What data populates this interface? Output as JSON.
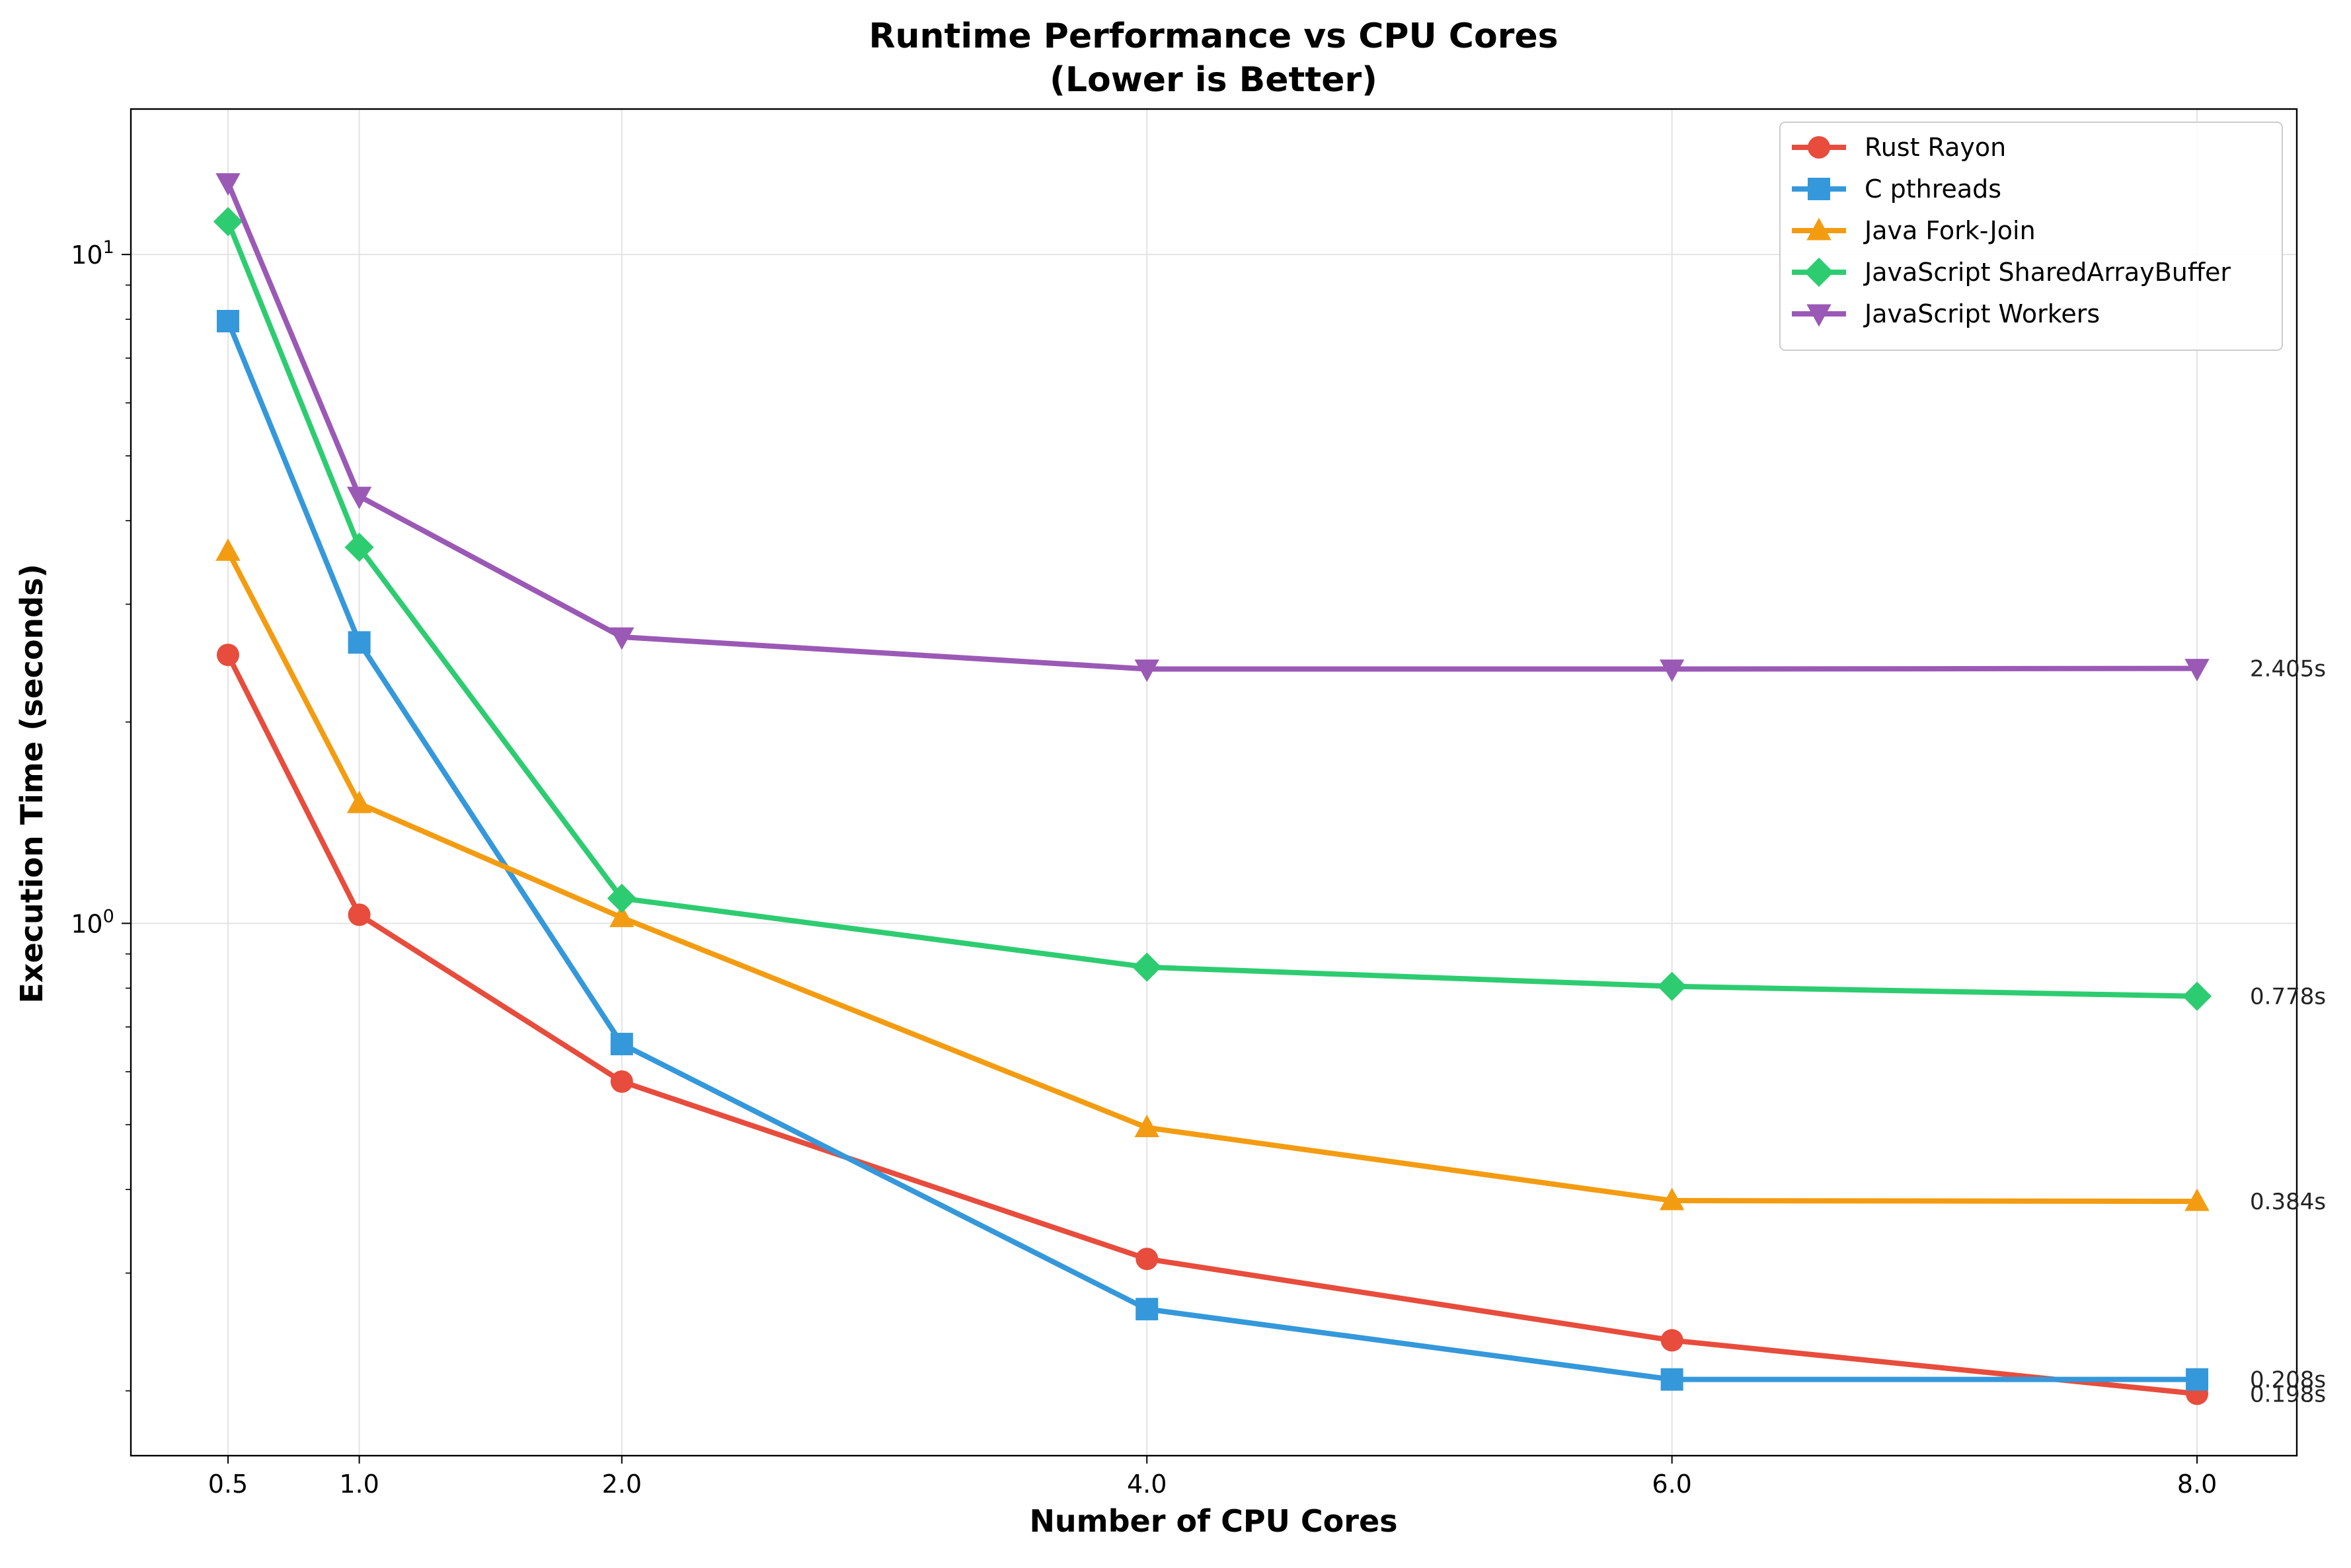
{
  "chart_data": {
    "type": "line",
    "title": "Runtime Performance vs CPU Cores",
    "subtitle": "(Lower is Better)",
    "xlabel": "Number of CPU Cores",
    "ylabel": "Execution Time (seconds)",
    "x": [
      0.5,
      1.0,
      2.0,
      4.0,
      6.0,
      8.0
    ],
    "x_tick_labels": [
      "0.5",
      "1.0",
      "2.0",
      "4.0",
      "6.0",
      "8.0"
    ],
    "xlim": [
      0.13,
      8.38
    ],
    "ylim": [
      0.16,
      16.5
    ],
    "y_scale": "log",
    "y_major_ticks": [
      {
        "value": 1,
        "base": "10",
        "exp": "0"
      },
      {
        "value": 10,
        "base": "10",
        "exp": "1"
      }
    ],
    "y_minor_ticks": [
      0.2,
      0.3,
      0.4,
      0.5,
      0.6,
      0.7,
      0.8,
      0.9,
      2,
      3,
      4,
      5,
      6,
      7,
      8,
      9
    ],
    "grid": true,
    "legend_position": "top-right",
    "series": [
      {
        "name": "Rust Rayon",
        "color": "#e74c3c",
        "marker": "circle",
        "values": [
          2.52,
          1.03,
          0.58,
          0.315,
          0.238,
          0.198
        ]
      },
      {
        "name": "C pthreads",
        "color": "#3498db",
        "marker": "square",
        "values": [
          7.95,
          2.63,
          0.66,
          0.265,
          0.208,
          0.208
        ]
      },
      {
        "name": "Java Fork-Join",
        "color": "#f39c12",
        "marker": "triangle-up",
        "values": [
          3.6,
          1.51,
          1.02,
          0.495,
          0.385,
          0.384
        ]
      },
      {
        "name": "JavaScript SharedArrayBuffer",
        "color": "#2ecc71",
        "marker": "diamond",
        "values": [
          11.2,
          3.65,
          1.09,
          0.86,
          0.805,
          0.778
        ]
      },
      {
        "name": "JavaScript Workers",
        "color": "#9b59b6",
        "marker": "triangle-down",
        "values": [
          12.8,
          4.35,
          2.68,
          2.4,
          2.4,
          2.405
        ]
      }
    ],
    "end_labels": [
      {
        "series": "JavaScript Workers",
        "text": "2.405s"
      },
      {
        "series": "JavaScript SharedArrayBuffer",
        "text": "0.778s"
      },
      {
        "series": "Java Fork-Join",
        "text": "0.384s"
      },
      {
        "series": "C pthreads",
        "text": "0.208s"
      },
      {
        "series": "Rust Rayon",
        "text": "0.198s"
      }
    ]
  }
}
